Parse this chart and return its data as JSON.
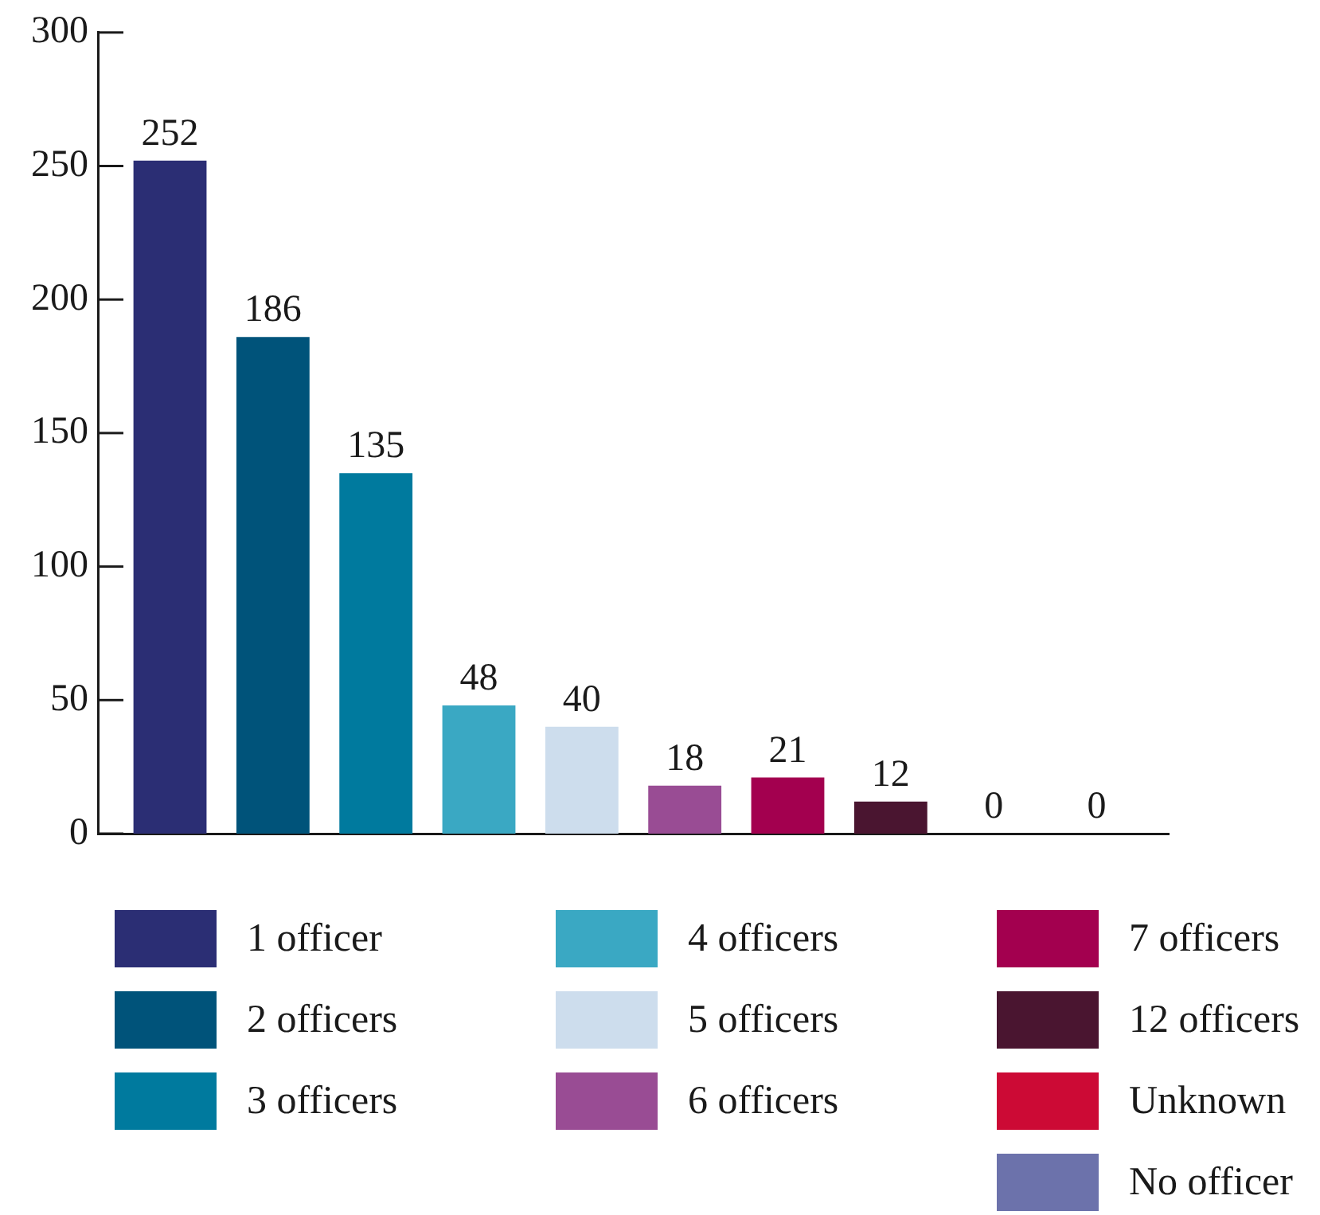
{
  "chart_data": {
    "type": "bar",
    "categories": [
      null,
      null,
      null,
      null,
      null,
      null,
      null,
      null,
      null,
      null
    ],
    "series": [
      {
        "name": "1 officer",
        "color": "#2b2e74",
        "values": [
          252,
          null,
          null,
          null,
          null,
          null,
          null,
          null,
          null,
          null
        ]
      },
      {
        "name": "2 officers",
        "color": "#00537a",
        "values": [
          null,
          186,
          null,
          null,
          null,
          null,
          null,
          null,
          null,
          null
        ]
      },
      {
        "name": "3 officers",
        "color": "#007a9e",
        "values": [
          null,
          null,
          135,
          null,
          null,
          null,
          null,
          null,
          null,
          null
        ]
      },
      {
        "name": "4 officers",
        "color": "#3aa8c3",
        "values": [
          null,
          null,
          null,
          48,
          null,
          null,
          null,
          null,
          null,
          null
        ]
      },
      {
        "name": "5 officers",
        "color": "#cddded",
        "values": [
          null,
          null,
          null,
          null,
          40,
          null,
          null,
          null,
          null,
          null
        ]
      },
      {
        "name": "6 officers",
        "color": "#994c94",
        "values": [
          null,
          null,
          null,
          null,
          null,
          18,
          null,
          null,
          null,
          null
        ]
      },
      {
        "name": "7 officers",
        "color": "#a3004f",
        "values": [
          null,
          null,
          null,
          null,
          null,
          null,
          21,
          null,
          null,
          null
        ]
      },
      {
        "name": "12 officers",
        "color": "#4a1530",
        "values": [
          null,
          null,
          null,
          null,
          null,
          null,
          null,
          12,
          null,
          null
        ]
      },
      {
        "name": "Unknown",
        "color": "#cc0a35",
        "values": [
          null,
          null,
          null,
          null,
          null,
          null,
          null,
          null,
          0,
          null
        ]
      },
      {
        "name": "No officer",
        "color": "#6c72ab",
        "values": [
          null,
          null,
          null,
          null,
          null,
          null,
          null,
          null,
          null,
          0
        ]
      }
    ],
    "ylim": [
      0,
      300
    ],
    "yticks": [
      0,
      50,
      100,
      150,
      200,
      250,
      300
    ],
    "legend": "bottom",
    "data_labels": true,
    "tick_labels": "y"
  }
}
